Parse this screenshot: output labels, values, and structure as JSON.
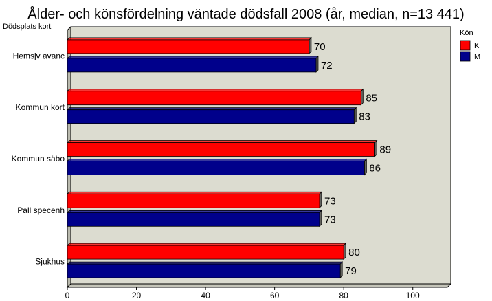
{
  "chart_data": {
    "type": "bar",
    "orientation": "horizontal",
    "title": "Ålder- och könsfördelning väntade dödsfall 2008 (år, median, n=13 441)",
    "ylabel": "Dödsplats kort",
    "xlabel": "",
    "categories": [
      "Hemsjv avanc",
      "Kommun kort",
      "Kommun säbo",
      "Pall specenh",
      "Sjukhus"
    ],
    "series": [
      {
        "name": "K",
        "color": "#ff0000",
        "values": [
          70,
          85,
          89,
          73,
          80
        ]
      },
      {
        "name": "M",
        "color": "#00008b",
        "values": [
          72,
          83,
          86,
          73,
          79
        ]
      }
    ],
    "xlim": [
      0,
      110
    ],
    "xticks": [
      0,
      20,
      40,
      60,
      80,
      100
    ],
    "legend_title": "Kön",
    "legend_position": "top-right",
    "grid": false,
    "plot_background": "#dcdcd0"
  }
}
